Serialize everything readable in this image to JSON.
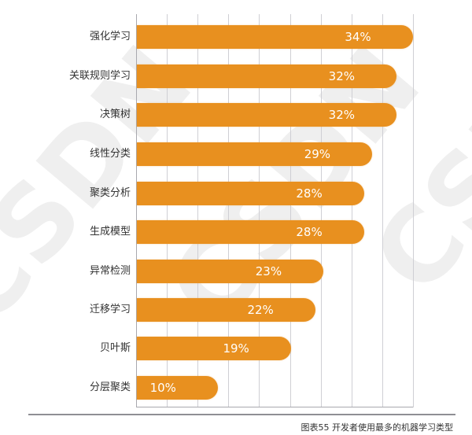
{
  "chart_data": {
    "type": "bar",
    "orientation": "horizontal",
    "title": "",
    "caption": "图表55 开发者使用最多的机器学习类型",
    "xlabel": "",
    "ylabel": "",
    "categories": [
      "强化学习",
      "关联规则学习",
      "决策树",
      "线性分类",
      "聚类分析",
      "生成模型",
      "异常检测",
      "迁移学习",
      "贝叶斯",
      "分层聚类"
    ],
    "values": [
      34,
      32,
      32,
      29,
      28,
      28,
      23,
      22,
      19,
      10
    ],
    "value_labels": [
      "34%",
      "32%",
      "32%",
      "29%",
      "28%",
      "28%",
      "23%",
      "22%",
      "19%",
      "10%"
    ],
    "unit": "%",
    "xlim": [
      0,
      34
    ],
    "grid": true,
    "legend": null,
    "bar_color": "#e8901f"
  },
  "caption": "图表55 开发者使用最多的机器学习类型",
  "watermark": "CSDN"
}
